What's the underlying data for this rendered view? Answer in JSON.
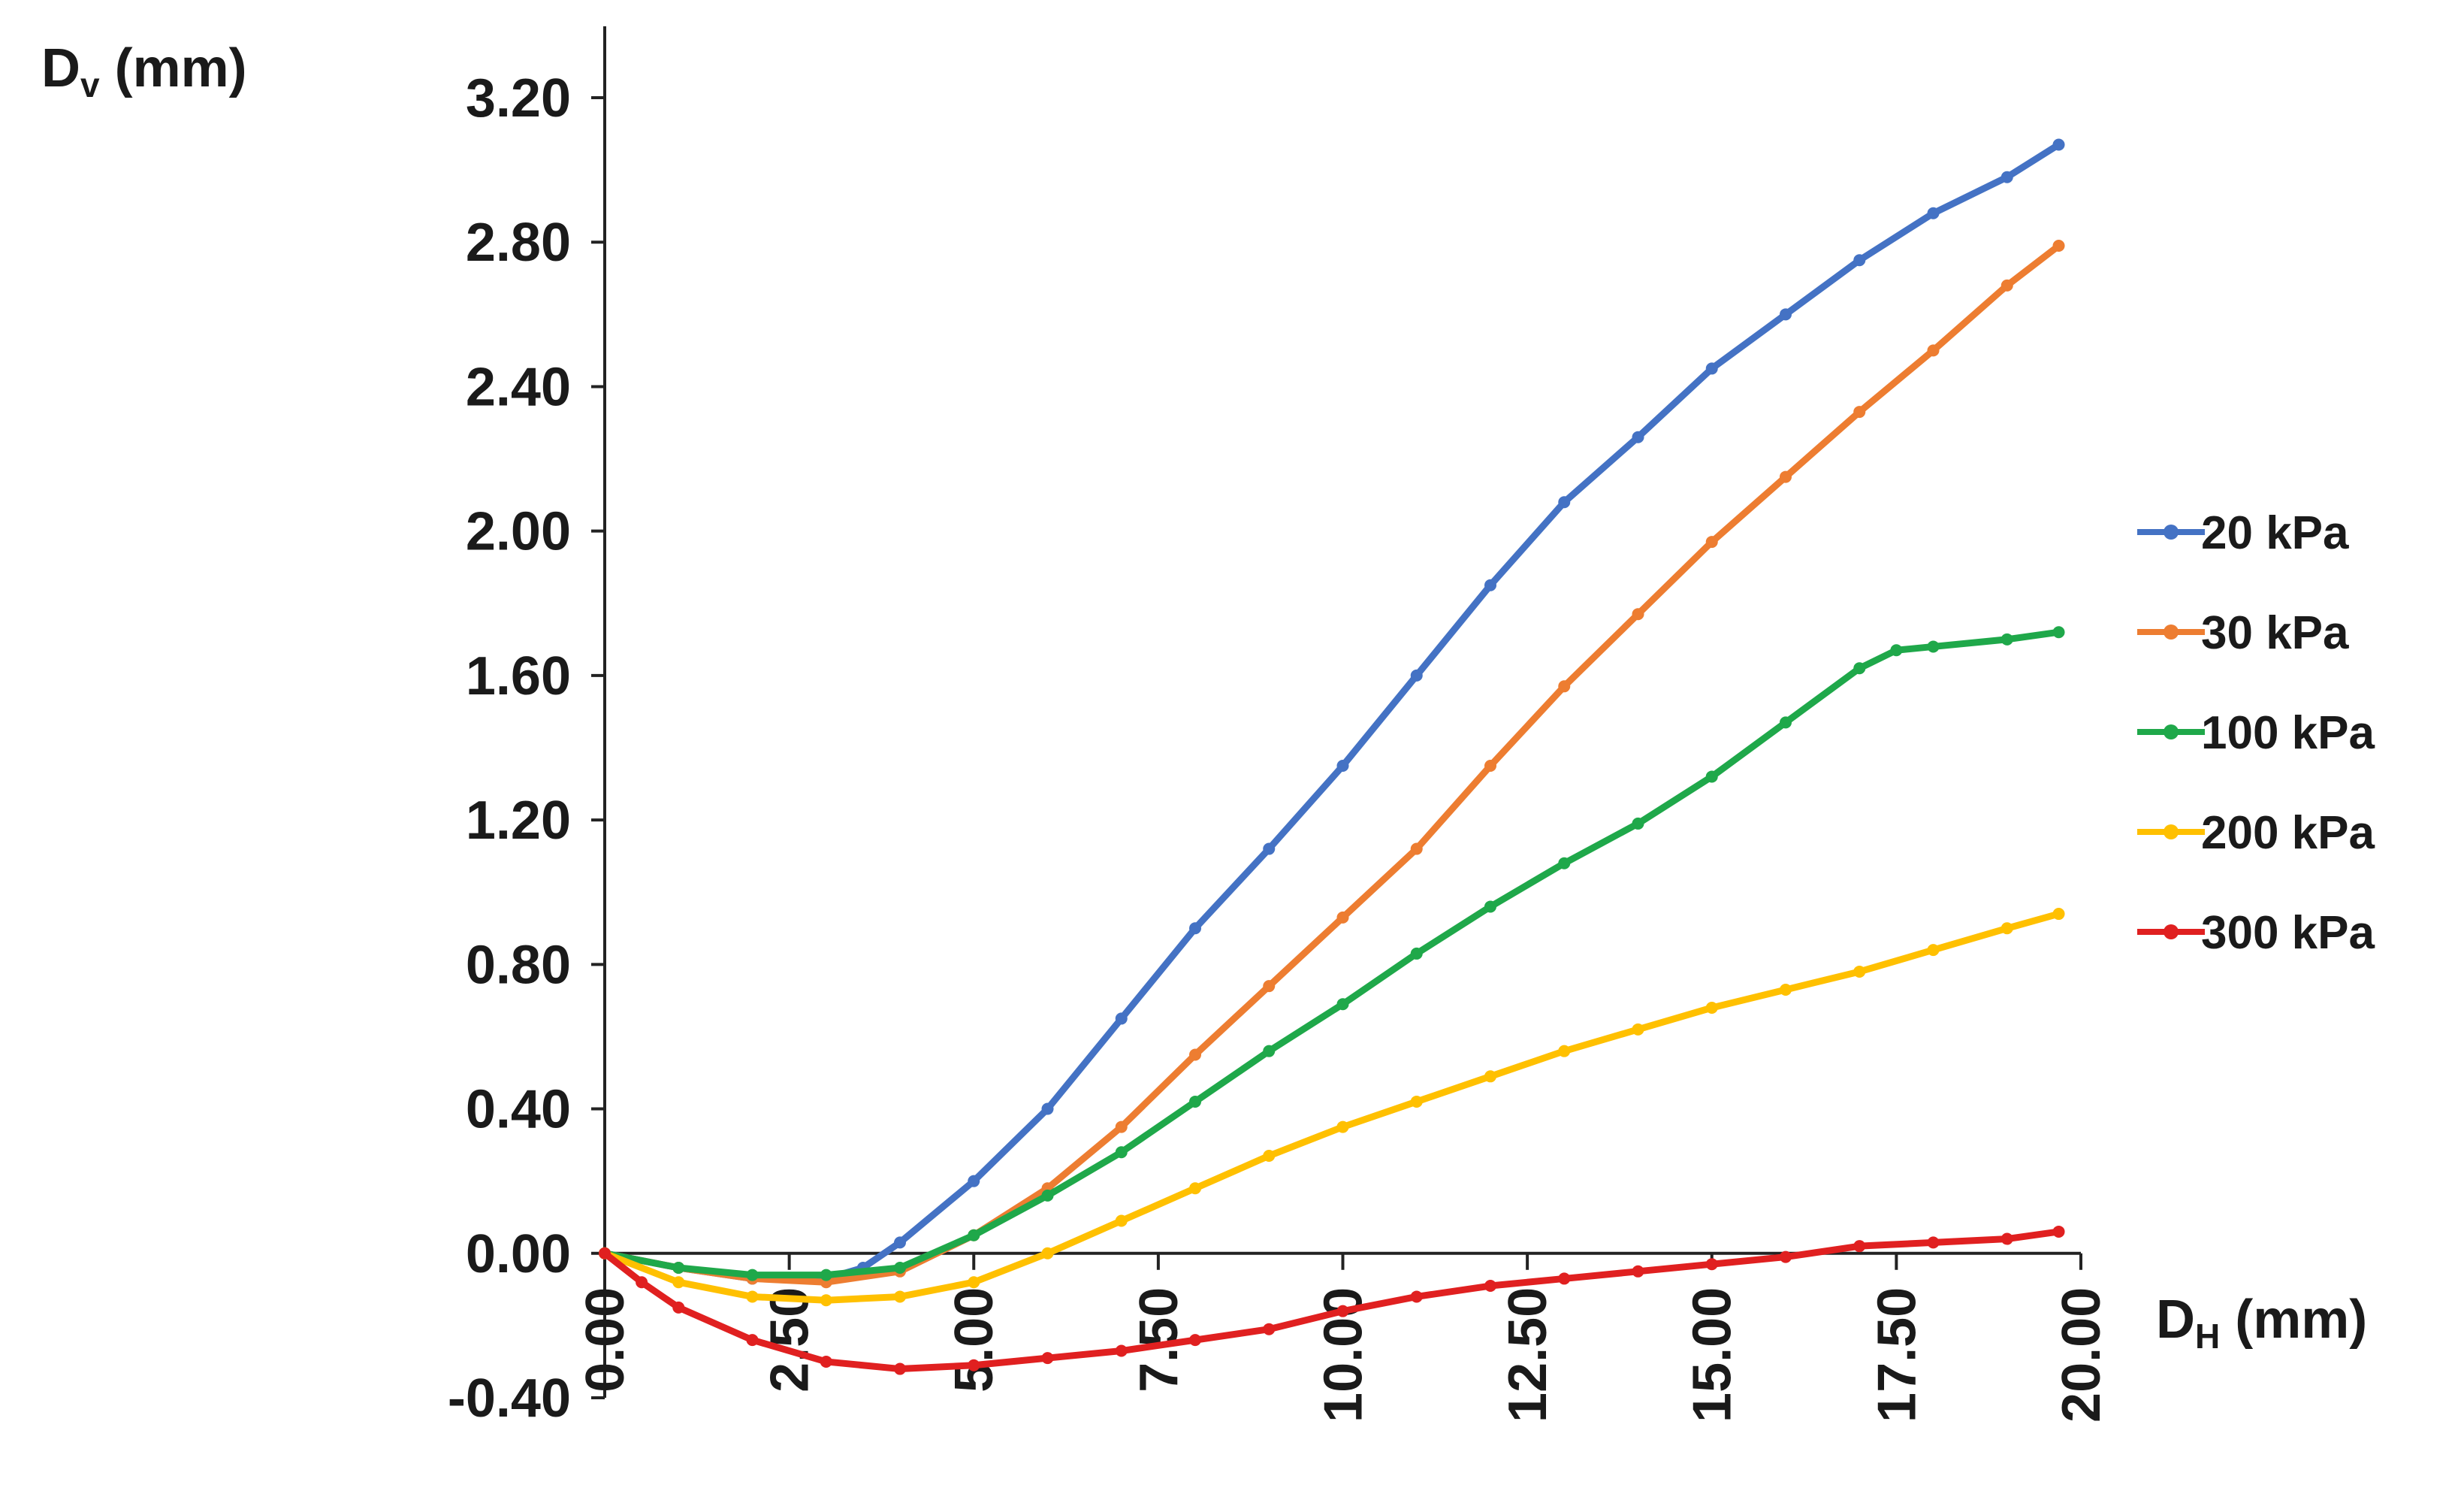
{
  "chart_data": {
    "type": "line",
    "title": "",
    "ylabel": {
      "main": "D",
      "sub": "v",
      "unit": " (mm)"
    },
    "xlabel": {
      "main": "D",
      "sub": "H",
      "unit": " (mm)"
    },
    "xlim": [
      0,
      20
    ],
    "ylim": [
      -0.4,
      3.2
    ],
    "x_ticks": [
      "0.00",
      "2.50",
      "5.00",
      "7.50",
      "10.00",
      "12.50",
      "15.00",
      "17.50",
      "20.00"
    ],
    "y_ticks": [
      "3.20",
      "2.80",
      "2.40",
      "2.00",
      "1.60",
      "1.20",
      "0.80",
      "0.40",
      "0.00",
      "-0.40"
    ],
    "grid": false,
    "legend_position": "right",
    "series": [
      {
        "name": "20 kPa",
        "color": "#4472C4",
        "x": [
          0,
          1,
          2,
          3,
          3.5,
          4,
          5,
          6,
          7,
          8,
          9,
          10,
          11,
          12,
          13,
          14,
          15,
          16,
          17,
          18,
          19,
          19.7
        ],
        "y": [
          0,
          -0.04,
          -0.07,
          -0.07,
          -0.04,
          0.03,
          0.2,
          0.4,
          0.65,
          0.9,
          1.12,
          1.35,
          1.6,
          1.85,
          2.08,
          2.26,
          2.45,
          2.6,
          2.75,
          2.88,
          2.98,
          3.07
        ]
      },
      {
        "name": "30 kPa",
        "color": "#ED7D31",
        "x": [
          0,
          1,
          2,
          3,
          4,
          5,
          6,
          7,
          8,
          9,
          10,
          11,
          12,
          13,
          14,
          15,
          16,
          17,
          18,
          19,
          19.7
        ],
        "y": [
          0,
          -0.04,
          -0.07,
          -0.08,
          -0.05,
          0.05,
          0.18,
          0.35,
          0.55,
          0.74,
          0.93,
          1.12,
          1.35,
          1.57,
          1.77,
          1.97,
          2.15,
          2.33,
          2.5,
          2.68,
          2.79
        ]
      },
      {
        "name": "100 kPa",
        "color": "#1FA84A",
        "x": [
          0,
          1,
          2,
          3,
          4,
          5,
          6,
          7,
          8,
          9,
          10,
          11,
          12,
          13,
          14,
          15,
          16,
          17,
          17.5,
          18,
          19,
          19.7
        ],
        "y": [
          0,
          -0.04,
          -0.06,
          -0.06,
          -0.04,
          0.05,
          0.16,
          0.28,
          0.42,
          0.56,
          0.69,
          0.83,
          0.96,
          1.08,
          1.19,
          1.32,
          1.47,
          1.62,
          1.67,
          1.68,
          1.7,
          1.72
        ]
      },
      {
        "name": "200 kPa",
        "color": "#FFC000",
        "x": [
          0,
          1,
          2,
          3,
          4,
          5,
          6,
          7,
          8,
          9,
          10,
          11,
          12,
          13,
          14,
          15,
          16,
          17,
          18,
          19,
          19.7
        ],
        "y": [
          0,
          -0.08,
          -0.12,
          -0.13,
          -0.12,
          -0.08,
          0.0,
          0.09,
          0.18,
          0.27,
          0.35,
          0.42,
          0.49,
          0.56,
          0.62,
          0.68,
          0.73,
          0.78,
          0.84,
          0.9,
          0.94
        ]
      },
      {
        "name": "300 kPa",
        "color": "#E02020",
        "x": [
          0,
          0.5,
          1,
          2,
          3,
          4,
          5,
          6,
          7,
          8,
          9,
          10,
          11,
          12,
          13,
          14,
          15,
          16,
          17,
          18,
          19,
          19.7
        ],
        "y": [
          0,
          -0.08,
          -0.15,
          -0.24,
          -0.3,
          -0.32,
          -0.31,
          -0.29,
          -0.27,
          -0.24,
          -0.21,
          -0.16,
          -0.12,
          -0.09,
          -0.07,
          -0.05,
          -0.03,
          -0.01,
          0.02,
          0.03,
          0.04,
          0.06
        ]
      }
    ]
  }
}
